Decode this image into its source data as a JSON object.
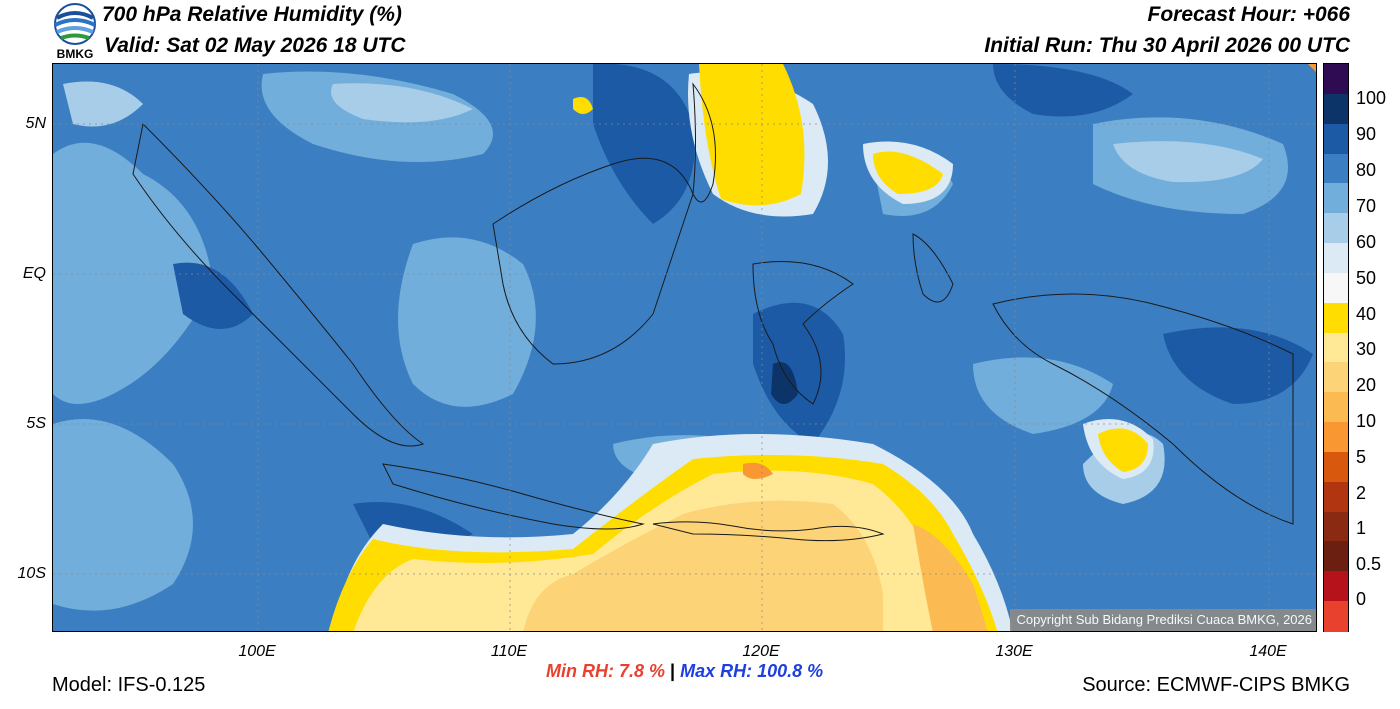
{
  "header": {
    "title": "700 hPa Relative Humidity (%)",
    "valid": "Valid: Sat 02 May 2026 18 UTC",
    "forecast_hour": "Forecast Hour: +066",
    "initial_run": "Initial Run: Thu 30 April 2026 00 UTC",
    "logo_text": "BMKG"
  },
  "map": {
    "lat_labels": [
      "5N",
      "EQ",
      "5S",
      "10S"
    ],
    "lon_labels": [
      "100E",
      "110E",
      "120E",
      "130E",
      "140E"
    ],
    "copyright": "Copyright Sub Bidang Prediksi Cuaca BMKG, 2026"
  },
  "colorbar": {
    "labels": [
      "100",
      "90",
      "80",
      "70",
      "60",
      "50",
      "40",
      "30",
      "20",
      "10",
      "5",
      "2",
      "1",
      "0.5",
      "0"
    ],
    "colors": [
      "#2e0b52",
      "#0d3468",
      "#1c5aa6",
      "#3b7fc2",
      "#72aedb",
      "#a8cde8",
      "#dbeaf4",
      "#f7f7f7",
      "#ffdd00",
      "#ffe896",
      "#fdd378",
      "#fcbb52",
      "#f99733",
      "#d8580e",
      "#b03510",
      "#8b2a12",
      "#6a1f10",
      "#b5121b",
      "#e8412e"
    ]
  },
  "stats": {
    "min_label": "Min RH:",
    "min_value": "7.8 %",
    "separator": "|",
    "max_label": "Max RH:",
    "max_value": "100.8 %"
  },
  "footer": {
    "model": "Model: IFS-0.125",
    "source": "Source: ECMWF-CIPS BMKG"
  }
}
